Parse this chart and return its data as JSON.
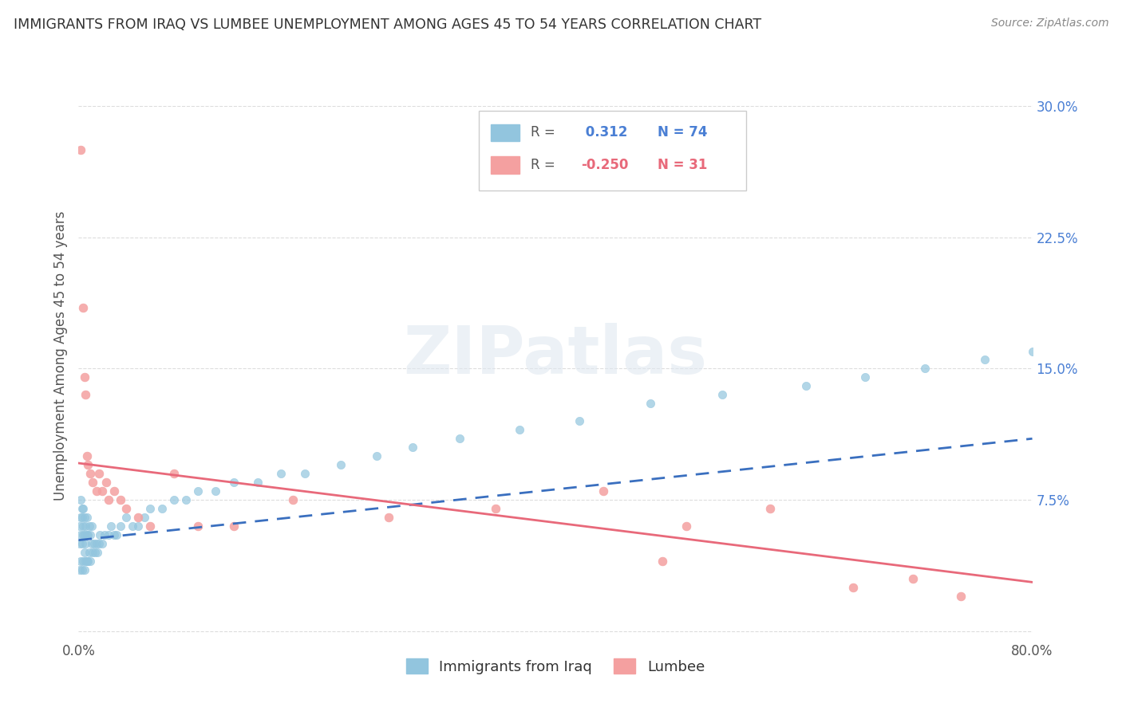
{
  "title": "IMMIGRANTS FROM IRAQ VS LUMBEE UNEMPLOYMENT AMONG AGES 45 TO 54 YEARS CORRELATION CHART",
  "source": "Source: ZipAtlas.com",
  "ylabel": "Unemployment Among Ages 45 to 54 years",
  "xlim": [
    0.0,
    0.8
  ],
  "ylim": [
    -0.005,
    0.32
  ],
  "iraq_R": 0.312,
  "iraq_N": 74,
  "lumbee_R": -0.25,
  "lumbee_N": 31,
  "iraq_color": "#92c5de",
  "lumbee_color": "#f4a0a0",
  "iraq_line_color": "#3a6fbf",
  "lumbee_line_color": "#e8697a",
  "iraq_dash_color": "#aaaacc",
  "background_color": "#ffffff",
  "watermark_text": "ZIPatlas",
  "iraq_x": [
    0.001,
    0.001,
    0.001,
    0.002,
    0.002,
    0.002,
    0.002,
    0.003,
    0.003,
    0.003,
    0.003,
    0.004,
    0.004,
    0.004,
    0.004,
    0.005,
    0.005,
    0.005,
    0.005,
    0.006,
    0.006,
    0.006,
    0.007,
    0.007,
    0.007,
    0.008,
    0.008,
    0.009,
    0.009,
    0.01,
    0.01,
    0.011,
    0.011,
    0.012,
    0.013,
    0.014,
    0.015,
    0.016,
    0.017,
    0.018,
    0.02,
    0.022,
    0.025,
    0.027,
    0.03,
    0.032,
    0.035,
    0.04,
    0.045,
    0.05,
    0.055,
    0.06,
    0.07,
    0.08,
    0.09,
    0.1,
    0.115,
    0.13,
    0.15,
    0.17,
    0.19,
    0.22,
    0.25,
    0.28,
    0.32,
    0.37,
    0.42,
    0.48,
    0.54,
    0.61,
    0.66,
    0.71,
    0.76,
    0.8
  ],
  "iraq_y": [
    0.035,
    0.05,
    0.06,
    0.04,
    0.055,
    0.065,
    0.075,
    0.035,
    0.05,
    0.065,
    0.07,
    0.04,
    0.055,
    0.06,
    0.07,
    0.035,
    0.045,
    0.055,
    0.065,
    0.04,
    0.05,
    0.06,
    0.04,
    0.055,
    0.065,
    0.04,
    0.055,
    0.045,
    0.06,
    0.04,
    0.055,
    0.05,
    0.06,
    0.045,
    0.05,
    0.045,
    0.05,
    0.045,
    0.05,
    0.055,
    0.05,
    0.055,
    0.055,
    0.06,
    0.055,
    0.055,
    0.06,
    0.065,
    0.06,
    0.06,
    0.065,
    0.07,
    0.07,
    0.075,
    0.075,
    0.08,
    0.08,
    0.085,
    0.085,
    0.09,
    0.09,
    0.095,
    0.1,
    0.105,
    0.11,
    0.115,
    0.12,
    0.13,
    0.135,
    0.14,
    0.145,
    0.15,
    0.155,
    0.16
  ],
  "lumbee_x": [
    0.002,
    0.004,
    0.005,
    0.006,
    0.007,
    0.008,
    0.01,
    0.012,
    0.015,
    0.017,
    0.02,
    0.023,
    0.025,
    0.03,
    0.035,
    0.04,
    0.05,
    0.06,
    0.08,
    0.1,
    0.13,
    0.18,
    0.26,
    0.35,
    0.44,
    0.51,
    0.58,
    0.65,
    0.7,
    0.74,
    0.49
  ],
  "lumbee_y": [
    0.275,
    0.185,
    0.145,
    0.135,
    0.1,
    0.095,
    0.09,
    0.085,
    0.08,
    0.09,
    0.08,
    0.085,
    0.075,
    0.08,
    0.075,
    0.07,
    0.065,
    0.06,
    0.09,
    0.06,
    0.06,
    0.075,
    0.065,
    0.07,
    0.08,
    0.06,
    0.07,
    0.025,
    0.03,
    0.02,
    0.04
  ],
  "iraq_trendline_x0": 0.0,
  "iraq_trendline_x1": 0.8,
  "iraq_trendline_y0": 0.052,
  "iraq_trendline_y1": 0.11,
  "lumbee_trendline_x0": 0.0,
  "lumbee_trendline_x1": 0.8,
  "lumbee_trendline_y0": 0.096,
  "lumbee_trendline_y1": 0.028
}
